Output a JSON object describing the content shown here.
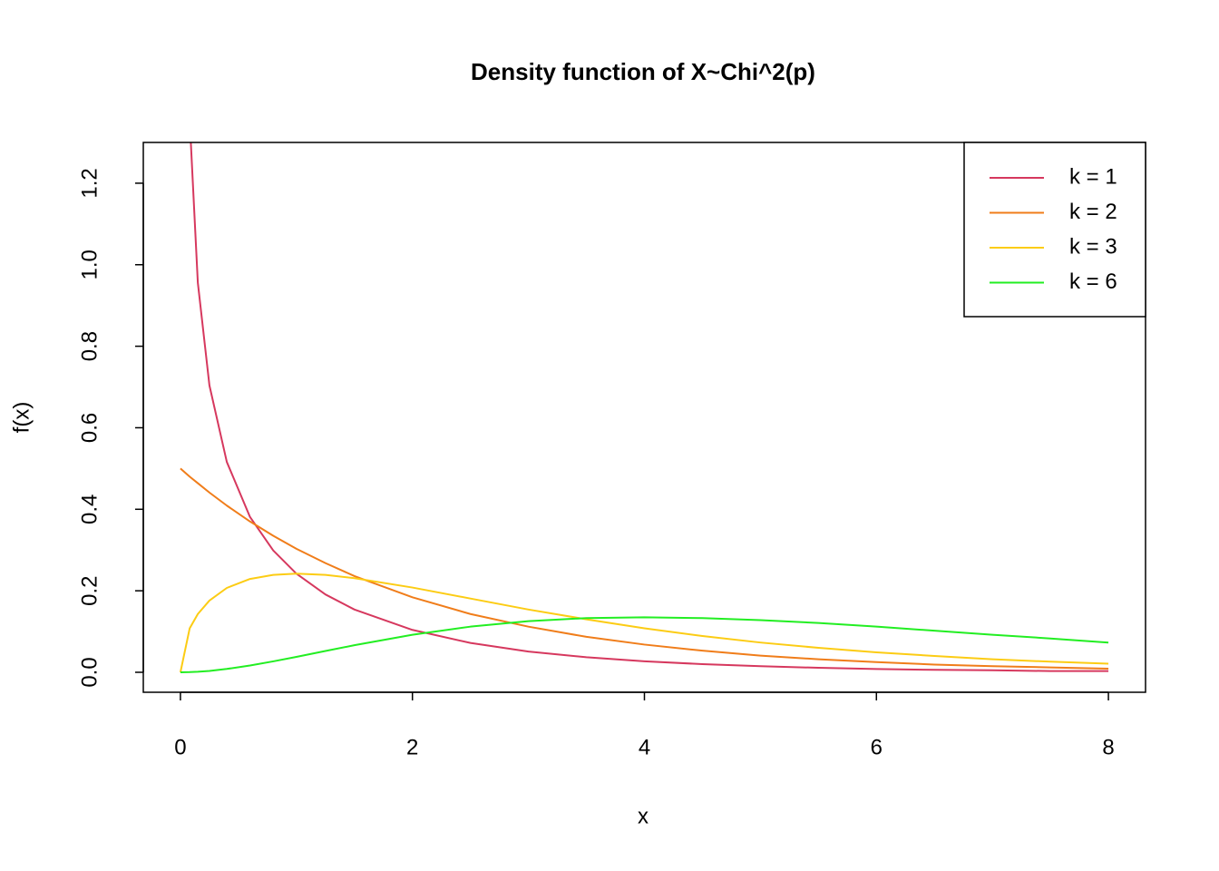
{
  "chart_data": {
    "type": "line",
    "title": "Density function of X~Chi^2(p)",
    "x_label": "x",
    "y_label": "f(x)",
    "x": [
      0,
      0.08,
      0.15,
      0.25,
      0.4,
      0.6,
      0.8,
      1,
      1.25,
      1.5,
      2,
      2.5,
      3,
      3.5,
      4,
      4.5,
      5,
      5.5,
      6,
      6.5,
      7,
      7.5,
      8
    ],
    "series": [
      {
        "name": "k = 1",
        "color": "#d6385e",
        "values": [
          null,
          1.355,
          0.956,
          0.704,
          0.516,
          0.381,
          0.299,
          0.242,
          0.191,
          0.154,
          0.104,
          0.072,
          0.051,
          0.037,
          0.027,
          0.02,
          0.015,
          0.011,
          0.008,
          0.006,
          0.005,
          0.003,
          0.003
        ]
      },
      {
        "name": "k = 2",
        "color": "#f07d1a",
        "values": [
          0.5,
          0.48,
          0.464,
          0.441,
          0.409,
          0.37,
          0.335,
          0.303,
          0.268,
          0.236,
          0.184,
          0.143,
          0.112,
          0.087,
          0.068,
          0.053,
          0.041,
          0.032,
          0.025,
          0.019,
          0.015,
          0.012,
          0.009
        ]
      },
      {
        "name": "k = 3",
        "color": "#fccc14",
        "values": [
          0,
          0.108,
          0.143,
          0.176,
          0.207,
          0.229,
          0.239,
          0.242,
          0.239,
          0.231,
          0.208,
          0.181,
          0.154,
          0.13,
          0.108,
          0.089,
          0.073,
          0.06,
          0.049,
          0.04,
          0.032,
          0.026,
          0.021
        ]
      },
      {
        "name": "k = 6",
        "color": "#22ee22",
        "values": [
          0,
          0.0004,
          0.0013,
          0.0034,
          0.0082,
          0.0167,
          0.0268,
          0.0379,
          0.0523,
          0.0664,
          0.092,
          0.112,
          0.1255,
          0.133,
          0.135,
          0.133,
          0.128,
          0.121,
          0.112,
          0.102,
          0.092,
          0.083,
          0.073
        ]
      }
    ],
    "xlim": [
      -0.32,
      8.32
    ],
    "xticks": [
      0,
      2,
      4,
      6,
      8
    ],
    "ylim": [
      -0.049,
      1.3
    ],
    "yticks": [
      {
        "value": 0,
        "label": "0.0"
      },
      0.2,
      0.4,
      0.6,
      0.8,
      {
        "value": 1,
        "label": "1.0"
      },
      1.2
    ],
    "legend": "top-right"
  }
}
